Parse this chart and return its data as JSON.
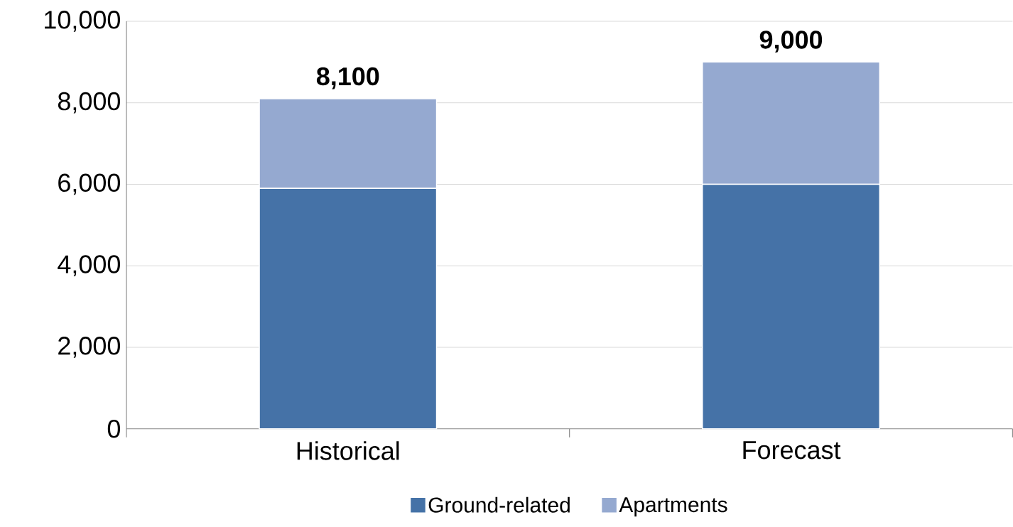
{
  "chart_data": {
    "type": "bar",
    "stacked": true,
    "categories": [
      "Historical",
      "Forecast"
    ],
    "series": [
      {
        "name": "Ground-related",
        "color": "#4572a7",
        "values": [
          5900,
          6000
        ]
      },
      {
        "name": "Apartments",
        "color": "#95a9d0",
        "values": [
          2200,
          3000
        ]
      }
    ],
    "totals": [
      "8,100",
      "9,000"
    ],
    "ylim": [
      0,
      10000
    ],
    "yticks": [
      0,
      {
        "value": 2000,
        "label": "2,000"
      },
      {
        "value": 4000,
        "label": "4,000"
      },
      {
        "value": 6000,
        "label": "6,000"
      },
      {
        "value": 8000,
        "label": "8,000"
      },
      {
        "value": 10000,
        "label": "10,000"
      }
    ],
    "grid": "y",
    "legend": "bottom"
  }
}
